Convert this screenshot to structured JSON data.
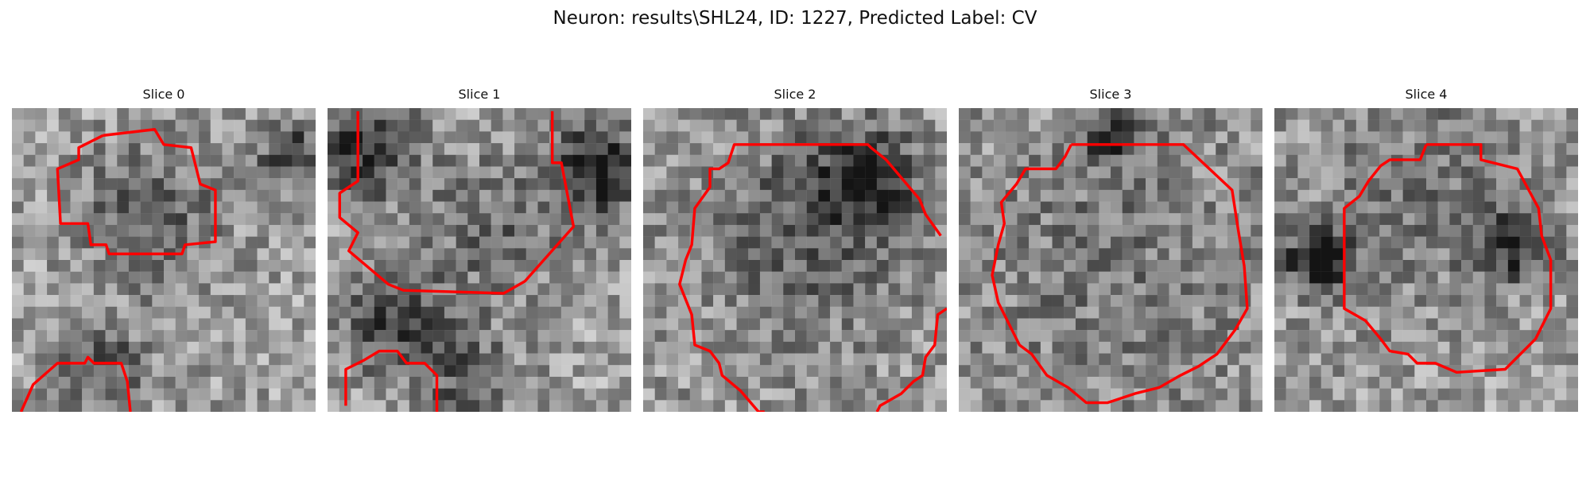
{
  "figure": {
    "title": "Neuron: results\\SHL24, ID: 1227, Predicted Label: CV"
  },
  "panels": [
    {
      "title": "Slice 0",
      "contour_color": "#ff0000"
    },
    {
      "title": "Slice 1",
      "contour_color": "#ff0000"
    },
    {
      "title": "Slice 2",
      "contour_color": "#ff0000"
    },
    {
      "title": "Slice 3",
      "contour_color": "#ff0000"
    },
    {
      "title": "Slice 4",
      "contour_color": "#ff0000"
    }
  ]
}
